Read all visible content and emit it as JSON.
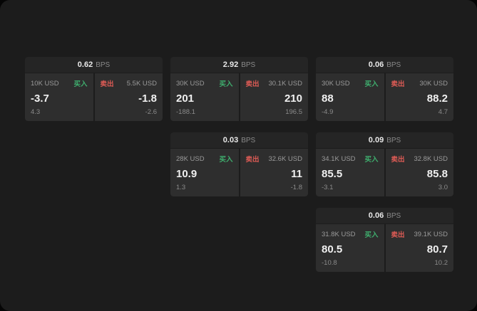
{
  "colors": {
    "background": "#1c1c1c",
    "card_header": "#252525",
    "panel": "#2e2e2e",
    "buy_accent": "#3fae6e",
    "sell_accent": "#dd5b55"
  },
  "bps_unit": "BPS",
  "cards": [
    {
      "bps": "0.62",
      "buy": {
        "amount": "10K USD",
        "label": "买入",
        "price": "-3.7",
        "delta": "4.3"
      },
      "sell": {
        "amount": "5.5K USD",
        "label": "卖出",
        "price": "-1.8",
        "delta": "-2.6"
      }
    },
    {
      "bps": "2.92",
      "buy": {
        "amount": "30K USD",
        "label": "买入",
        "price": "201",
        "delta": "-188.1"
      },
      "sell": {
        "amount": "30.1K USD",
        "label": "卖出",
        "price": "210",
        "delta": "196.5"
      }
    },
    {
      "bps": "0.06",
      "buy": {
        "amount": "30K USD",
        "label": "买入",
        "price": "88",
        "delta": "-4.9"
      },
      "sell": {
        "amount": "30K USD",
        "label": "卖出",
        "price": "88.2",
        "delta": "4.7"
      }
    },
    {
      "bps": "0.03",
      "buy": {
        "amount": "28K USD",
        "label": "买入",
        "price": "10.9",
        "delta": "1.3"
      },
      "sell": {
        "amount": "32.6K USD",
        "label": "卖出",
        "price": "11",
        "delta": "-1.8"
      }
    },
    {
      "bps": "0.09",
      "buy": {
        "amount": "34.1K USD",
        "label": "买入",
        "price": "85.5",
        "delta": "-3.1"
      },
      "sell": {
        "amount": "32.8K USD",
        "label": "卖出",
        "price": "85.8",
        "delta": "3.0"
      }
    },
    {
      "bps": "0.06",
      "buy": {
        "amount": "31.8K USD",
        "label": "买入",
        "price": "80.5",
        "delta": "-10.8"
      },
      "sell": {
        "amount": "39.1K USD",
        "label": "卖出",
        "price": "80.7",
        "delta": "10.2"
      }
    }
  ]
}
